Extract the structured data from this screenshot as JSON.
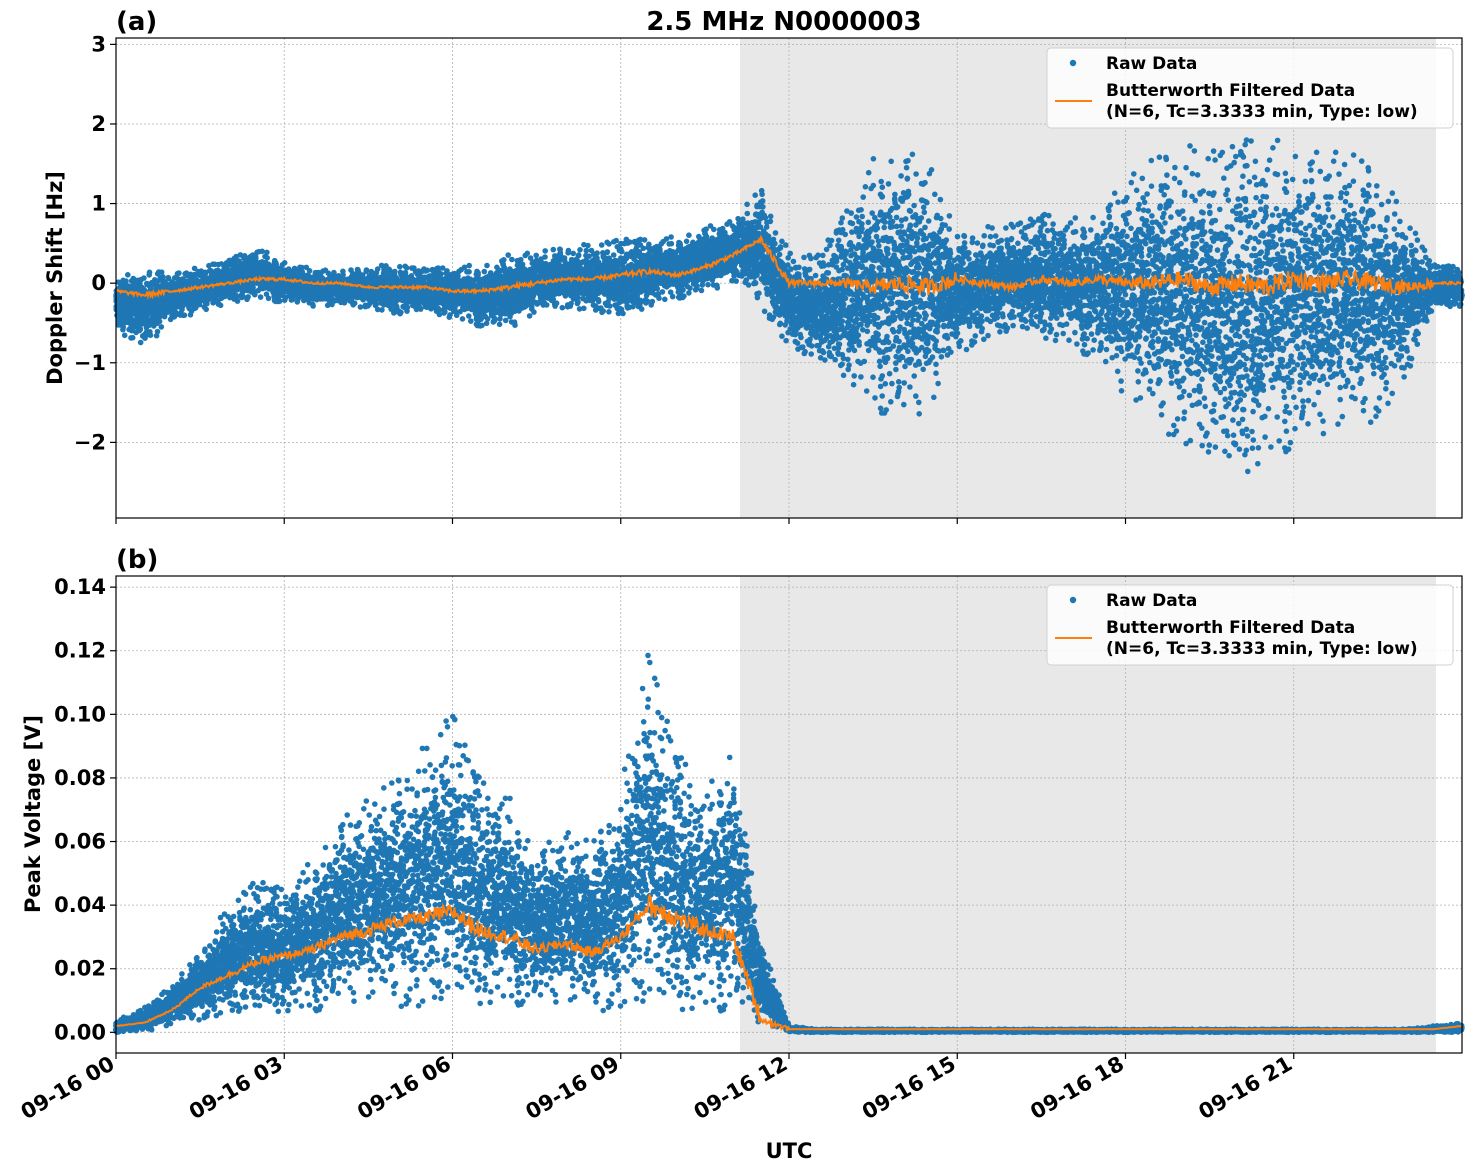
{
  "figure": {
    "title": "2.5 MHz N0000003",
    "xlabel": "UTC",
    "x_tick_labels": [
      "09-16 00",
      "09-16 03",
      "09-16 06",
      "09-16 09",
      "09-16 12",
      "09-16 15",
      "09-16 18",
      "09-16 21"
    ]
  },
  "legend": {
    "raw_label": "Raw Data",
    "filtered_label_line1": "Butterworth Filtered Data",
    "filtered_label_line2": "(N=6, Tc=3.3333 min, Type: low)"
  },
  "colors": {
    "raw": "#1f77b4",
    "filtered": "#ff7f0e",
    "shade": "#e8e8e8",
    "grid": "#b0b0b0"
  },
  "chart_data": [
    {
      "type": "scatter",
      "panel_label": "(a)",
      "ylabel": "Doppler Shift [Hz]",
      "x_unit": "hours UTC on 09-16",
      "xlim": [
        0,
        24
      ],
      "ylim": [
        -2.95,
        3.08
      ],
      "y_ticks": [
        -2,
        -1,
        0,
        1,
        2,
        3
      ],
      "y_tick_labels": [
        "−2",
        "−1",
        "0",
        "1",
        "2",
        "3"
      ],
      "grid": true,
      "legend_position": "top-right",
      "shaded_region_hours": [
        11.1,
        23.5
      ],
      "series": [
        {
          "name": "Raw Data",
          "style": "points",
          "x": [
            0,
            0.5,
            1,
            1.5,
            2,
            2.5,
            3,
            3.5,
            4,
            4.5,
            5,
            5.5,
            6,
            6.5,
            7,
            7.5,
            8,
            8.5,
            9,
            9.5,
            10,
            10.5,
            11,
            11.5,
            12,
            12.5,
            13,
            13.5,
            14,
            14.5,
            15,
            15.5,
            16,
            16.5,
            17,
            17.5,
            18,
            18.5,
            19,
            19.5,
            20,
            20.5,
            21,
            21.5,
            22,
            22.5,
            23,
            23.5,
            24
          ],
          "ymin": [
            -0.6,
            -0.8,
            -0.5,
            -0.35,
            -0.25,
            -0.2,
            -0.25,
            -0.3,
            -0.3,
            -0.3,
            -0.4,
            -0.35,
            -0.45,
            -0.55,
            -0.6,
            -0.4,
            -0.3,
            -0.35,
            -0.45,
            -0.3,
            -0.2,
            -0.15,
            0.0,
            -0.3,
            -0.8,
            -1.0,
            -1.2,
            -1.6,
            -1.8,
            -1.7,
            -0.9,
            -0.7,
            -0.6,
            -0.7,
            -0.8,
            -1.0,
            -1.5,
            -1.8,
            -2.0,
            -2.2,
            -2.5,
            -2.3,
            -2.1,
            -2.0,
            -1.9,
            -1.7,
            -1.2,
            -0.3,
            -0.3
          ],
          "ymax": [
            0.1,
            0.15,
            0.15,
            0.2,
            0.3,
            0.45,
            0.3,
            0.2,
            0.15,
            0.2,
            0.25,
            0.2,
            0.2,
            0.25,
            0.4,
            0.4,
            0.45,
            0.5,
            0.6,
            0.55,
            0.6,
            0.75,
            0.8,
            1.2,
            0.4,
            0.4,
            0.9,
            1.6,
            1.9,
            1.6,
            0.6,
            0.7,
            0.8,
            0.9,
            0.8,
            1.0,
            1.4,
            1.6,
            1.7,
            1.8,
            1.9,
            1.8,
            1.9,
            1.8,
            1.7,
            1.4,
            0.9,
            0.25,
            0.2
          ]
        },
        {
          "name": "Butterworth Filtered Data (N=6, Tc=3.3333 min, Type: low)",
          "style": "line",
          "x": [
            0,
            0.5,
            1,
            1.5,
            2,
            2.5,
            3,
            3.5,
            4,
            4.5,
            5,
            5.5,
            6,
            6.5,
            7,
            7.5,
            8,
            8.5,
            9,
            9.5,
            10,
            10.5,
            11,
            11.5,
            12,
            12.5,
            13,
            13.5,
            14,
            14.5,
            15,
            15.5,
            16,
            16.5,
            17,
            17.5,
            18,
            18.5,
            19,
            19.5,
            20,
            20.5,
            21,
            21.5,
            22,
            22.5,
            23,
            23.5,
            24
          ],
          "y": [
            -0.1,
            -0.15,
            -0.1,
            -0.05,
            0.0,
            0.05,
            0.05,
            0.0,
            0.0,
            -0.05,
            -0.05,
            -0.05,
            -0.1,
            -0.1,
            -0.05,
            0.0,
            0.05,
            0.05,
            0.1,
            0.15,
            0.1,
            0.2,
            0.35,
            0.55,
            0.0,
            0.0,
            0.0,
            -0.05,
            0.0,
            -0.05,
            0.05,
            0.0,
            -0.05,
            0.05,
            0.0,
            0.05,
            0.0,
            0.0,
            0.05,
            -0.05,
            0.0,
            -0.05,
            0.05,
            0.0,
            0.05,
            0.0,
            -0.05,
            0.0,
            0.0
          ]
        }
      ]
    },
    {
      "type": "scatter",
      "panel_label": "(b)",
      "ylabel": "Peak Voltage [V]",
      "x_unit": "hours UTC on 09-16",
      "xlim": [
        0,
        24
      ],
      "ylim": [
        -0.0065,
        0.1435
      ],
      "y_ticks": [
        0.0,
        0.02,
        0.04,
        0.06,
        0.08,
        0.1,
        0.12,
        0.14
      ],
      "y_tick_labels": [
        "0.00",
        "0.02",
        "0.04",
        "0.06",
        "0.08",
        "0.10",
        "0.12",
        "0.14"
      ],
      "grid": true,
      "legend_position": "top-right",
      "shaded_region_hours": [
        11.1,
        23.5
      ],
      "series": [
        {
          "name": "Raw Data",
          "style": "points",
          "x": [
            0,
            0.5,
            1,
            1.5,
            2,
            2.5,
            3,
            3.5,
            4,
            4.5,
            5,
            5.5,
            6,
            6.5,
            7,
            7.5,
            8,
            8.5,
            9,
            9.5,
            10,
            10.5,
            11,
            11.5,
            12,
            12.5,
            13,
            13.5,
            14,
            14.5,
            15,
            15.5,
            16,
            16.5,
            17,
            17.5,
            18,
            18.5,
            19,
            19.5,
            20,
            20.5,
            21,
            21.5,
            22,
            22.5,
            23,
            23.5,
            24
          ],
          "ymin": [
            0.0,
            0.0,
            0.002,
            0.004,
            0.006,
            0.006,
            0.006,
            0.006,
            0.008,
            0.008,
            0.008,
            0.008,
            0.01,
            0.008,
            0.008,
            0.008,
            0.008,
            0.006,
            0.008,
            0.008,
            0.006,
            0.006,
            0.006,
            0.002,
            0.0,
            0.0,
            0.0,
            0.0,
            0.0,
            0.0,
            0.0,
            0.0,
            0.0,
            0.0,
            0.0,
            0.0,
            0.0,
            0.0,
            0.0,
            0.0,
            0.0,
            0.0,
            0.0,
            0.0,
            0.0,
            0.0,
            0.0,
            0.0,
            0.0
          ],
          "ymax": [
            0.004,
            0.008,
            0.015,
            0.025,
            0.04,
            0.05,
            0.045,
            0.055,
            0.07,
            0.075,
            0.08,
            0.09,
            0.105,
            0.08,
            0.075,
            0.06,
            0.065,
            0.06,
            0.075,
            0.125,
            0.09,
            0.075,
            0.095,
            0.03,
            0.002,
            0.001,
            0.001,
            0.001,
            0.001,
            0.001,
            0.001,
            0.001,
            0.001,
            0.001,
            0.001,
            0.001,
            0.001,
            0.001,
            0.001,
            0.001,
            0.001,
            0.001,
            0.001,
            0.001,
            0.001,
            0.001,
            0.001,
            0.002,
            0.003
          ]
        },
        {
          "name": "Butterworth Filtered Data (N=6, Tc=3.3333 min, Type: low)",
          "style": "line",
          "x": [
            0,
            0.5,
            1,
            1.5,
            2,
            2.5,
            3,
            3.5,
            4,
            4.5,
            5,
            5.5,
            6,
            6.5,
            7,
            7.5,
            8,
            8.5,
            9,
            9.5,
            10,
            10.5,
            11,
            11.5,
            12,
            12.5,
            13,
            13.5,
            14,
            14.5,
            15,
            15.5,
            16,
            16.5,
            17,
            17.5,
            18,
            18.5,
            19,
            19.5,
            20,
            20.5,
            21,
            21.5,
            22,
            22.5,
            23,
            23.5,
            24
          ],
          "y": [
            0.002,
            0.003,
            0.007,
            0.014,
            0.018,
            0.022,
            0.024,
            0.026,
            0.03,
            0.032,
            0.035,
            0.036,
            0.038,
            0.032,
            0.03,
            0.026,
            0.028,
            0.025,
            0.03,
            0.04,
            0.036,
            0.032,
            0.03,
            0.004,
            0.001,
            0.001,
            0.001,
            0.001,
            0.001,
            0.001,
            0.001,
            0.001,
            0.001,
            0.001,
            0.001,
            0.001,
            0.001,
            0.001,
            0.001,
            0.001,
            0.001,
            0.001,
            0.001,
            0.001,
            0.001,
            0.001,
            0.001,
            0.001,
            0.002
          ]
        }
      ]
    }
  ]
}
